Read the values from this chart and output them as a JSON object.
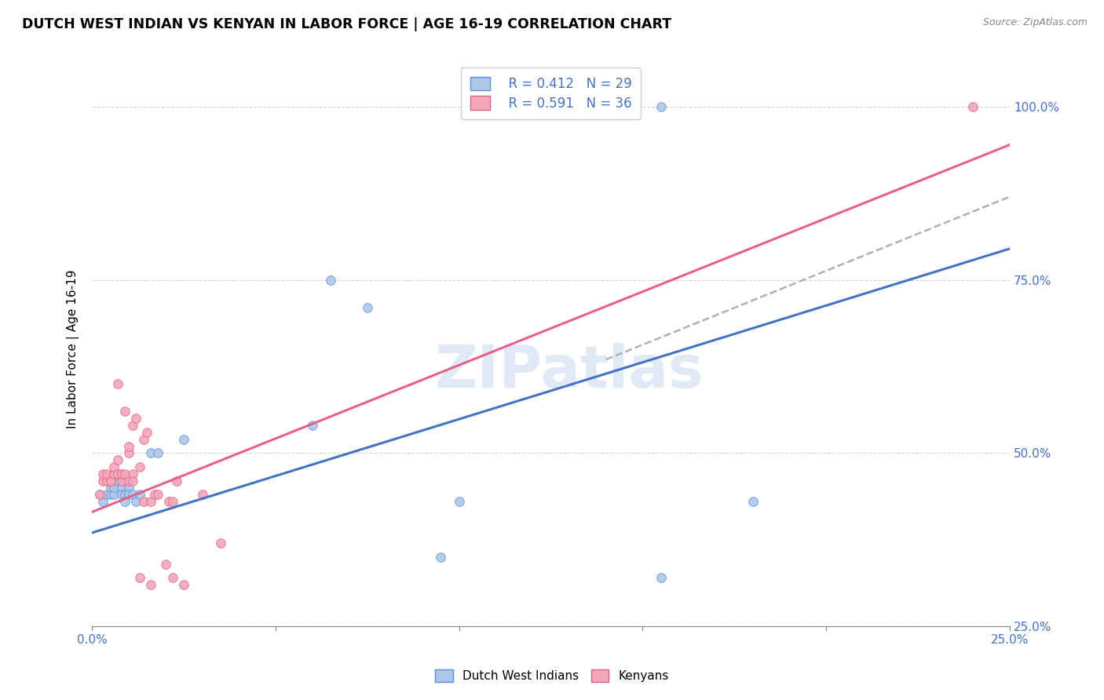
{
  "title": "DUTCH WEST INDIAN VS KENYAN IN LABOR FORCE | AGE 16-19 CORRELATION CHART",
  "source": "Source: ZipAtlas.com",
  "ylabel": "In Labor Force | Age 16-19",
  "xlim": [
    0.0,
    0.25
  ],
  "ylim": [
    0.3,
    1.05
  ],
  "xticks": [
    0.0,
    0.05,
    0.1,
    0.15,
    0.2,
    0.25
  ],
  "xticklabels": [
    "0.0%",
    "",
    "",
    "",
    "",
    "25.0%"
  ],
  "yticks": [
    0.25,
    0.5,
    0.75,
    1.0
  ],
  "yticklabels": [
    "25.0%",
    "50.0%",
    "75.0%",
    "100.0%"
  ],
  "blue_R": 0.412,
  "blue_N": 29,
  "pink_R": 0.591,
  "pink_N": 36,
  "blue_color": "#aec6e8",
  "pink_color": "#f4a7b9",
  "blue_edge_color": "#5b8dd9",
  "pink_edge_color": "#e06080",
  "blue_line_color": "#4472c4",
  "pink_line_color": "#e8608a",
  "dashed_line_color": "#b0b0b0",
  "watermark": "ZIPatlas",
  "blue_scatter_x": [
    0.002,
    0.003,
    0.004,
    0.005,
    0.005,
    0.006,
    0.006,
    0.007,
    0.007,
    0.008,
    0.008,
    0.009,
    0.009,
    0.01,
    0.01,
    0.011,
    0.012,
    0.013,
    0.016,
    0.018,
    0.025,
    0.06,
    0.065,
    0.075,
    0.095,
    0.1,
    0.155,
    0.155,
    0.18
  ],
  "blue_scatter_y": [
    0.44,
    0.43,
    0.44,
    0.44,
    0.45,
    0.44,
    0.45,
    0.46,
    0.47,
    0.45,
    0.44,
    0.44,
    0.43,
    0.45,
    0.44,
    0.44,
    0.43,
    0.44,
    0.5,
    0.5,
    0.52,
    0.54,
    0.75,
    0.71,
    0.35,
    0.43,
    0.32,
    1.0,
    0.43
  ],
  "pink_scatter_x": [
    0.002,
    0.003,
    0.003,
    0.004,
    0.004,
    0.005,
    0.005,
    0.006,
    0.006,
    0.007,
    0.007,
    0.008,
    0.008,
    0.009,
    0.009,
    0.01,
    0.01,
    0.011,
    0.011,
    0.012,
    0.013,
    0.014,
    0.014,
    0.015,
    0.016,
    0.017,
    0.018,
    0.02,
    0.021,
    0.022,
    0.023,
    0.025,
    0.03,
    0.035,
    0.24
  ],
  "pink_scatter_y": [
    0.44,
    0.46,
    0.47,
    0.46,
    0.47,
    0.46,
    0.46,
    0.47,
    0.48,
    0.47,
    0.49,
    0.46,
    0.47,
    0.47,
    0.56,
    0.5,
    0.51,
    0.47,
    0.54,
    0.55,
    0.48,
    0.52,
    0.43,
    0.53,
    0.43,
    0.44,
    0.44,
    0.34,
    0.43,
    0.43,
    0.46,
    0.31,
    0.44,
    0.37,
    1.0
  ],
  "pink_extra_x": [
    0.007,
    0.01,
    0.011,
    0.013,
    0.016,
    0.022
  ],
  "pink_extra_y": [
    0.6,
    0.46,
    0.46,
    0.32,
    0.31,
    0.32
  ],
  "blue_line_x": [
    0.0,
    0.25
  ],
  "blue_line_y": [
    0.385,
    0.795
  ],
  "pink_line_x": [
    0.0,
    0.25
  ],
  "pink_line_y": [
    0.415,
    0.945
  ],
  "dashed_line_x": [
    0.14,
    0.25
  ],
  "dashed_line_y": [
    0.635,
    0.87
  ]
}
